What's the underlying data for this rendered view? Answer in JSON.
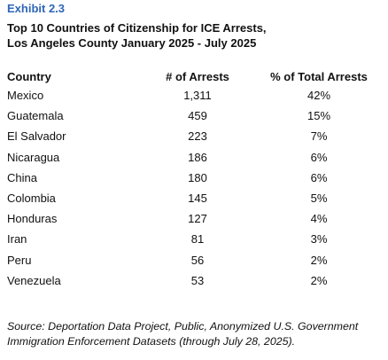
{
  "exhibit": "Exhibit 2.3",
  "title": {
    "line1": "Top 10 Countries of Citizenship for ICE Arrests,",
    "line2": "Los Angeles County January 2025 - July 2025"
  },
  "table": {
    "headers": [
      "Country",
      "# of Arrests",
      "% of Total Arrests"
    ],
    "rows": [
      {
        "country": "Mexico",
        "arrests": "1,311",
        "pct": "42%"
      },
      {
        "country": "Guatemala",
        "arrests": "459",
        "pct": "15%"
      },
      {
        "country": "El Salvador",
        "arrests": "223",
        "pct": "7%"
      },
      {
        "country": "Nicaragua",
        "arrests": "186",
        "pct": "6%"
      },
      {
        "country": "China",
        "arrests": "180",
        "pct": "6%"
      },
      {
        "country": "Colombia",
        "arrests": "145",
        "pct": "5%"
      },
      {
        "country": "Honduras",
        "arrests": "127",
        "pct": "4%"
      },
      {
        "country": "Iran",
        "arrests": "81",
        "pct": "3%"
      },
      {
        "country": "Peru",
        "arrests": "56",
        "pct": "2%"
      },
      {
        "country": "Venezuela",
        "arrests": "53",
        "pct": "2%"
      }
    ]
  },
  "source": {
    "line1": "Source: Deportation Data Project, Public, Anonymized U.S. Government",
    "line2": "Immigration Enforcement Datasets (through July 28, 2025)."
  },
  "colors": {
    "exhibit_label": "#2e66b7",
    "text": "#111111",
    "background": "#ffffff"
  },
  "chart_data": {
    "type": "table",
    "title": "Top 10 Countries of Citizenship for ICE Arrests, Los Angeles County January 2025 - July 2025",
    "columns": [
      "Country",
      "# of Arrests",
      "% of Total Arrests"
    ],
    "categories": [
      "Mexico",
      "Guatemala",
      "El Salvador",
      "Nicaragua",
      "China",
      "Colombia",
      "Honduras",
      "Iran",
      "Peru",
      "Venezuela"
    ],
    "series": [
      {
        "name": "# of Arrests",
        "values": [
          1311,
          459,
          223,
          186,
          180,
          145,
          127,
          81,
          56,
          53
        ]
      },
      {
        "name": "% of Total Arrests",
        "values": [
          42,
          15,
          7,
          6,
          6,
          5,
          4,
          3,
          2,
          2
        ]
      }
    ]
  }
}
